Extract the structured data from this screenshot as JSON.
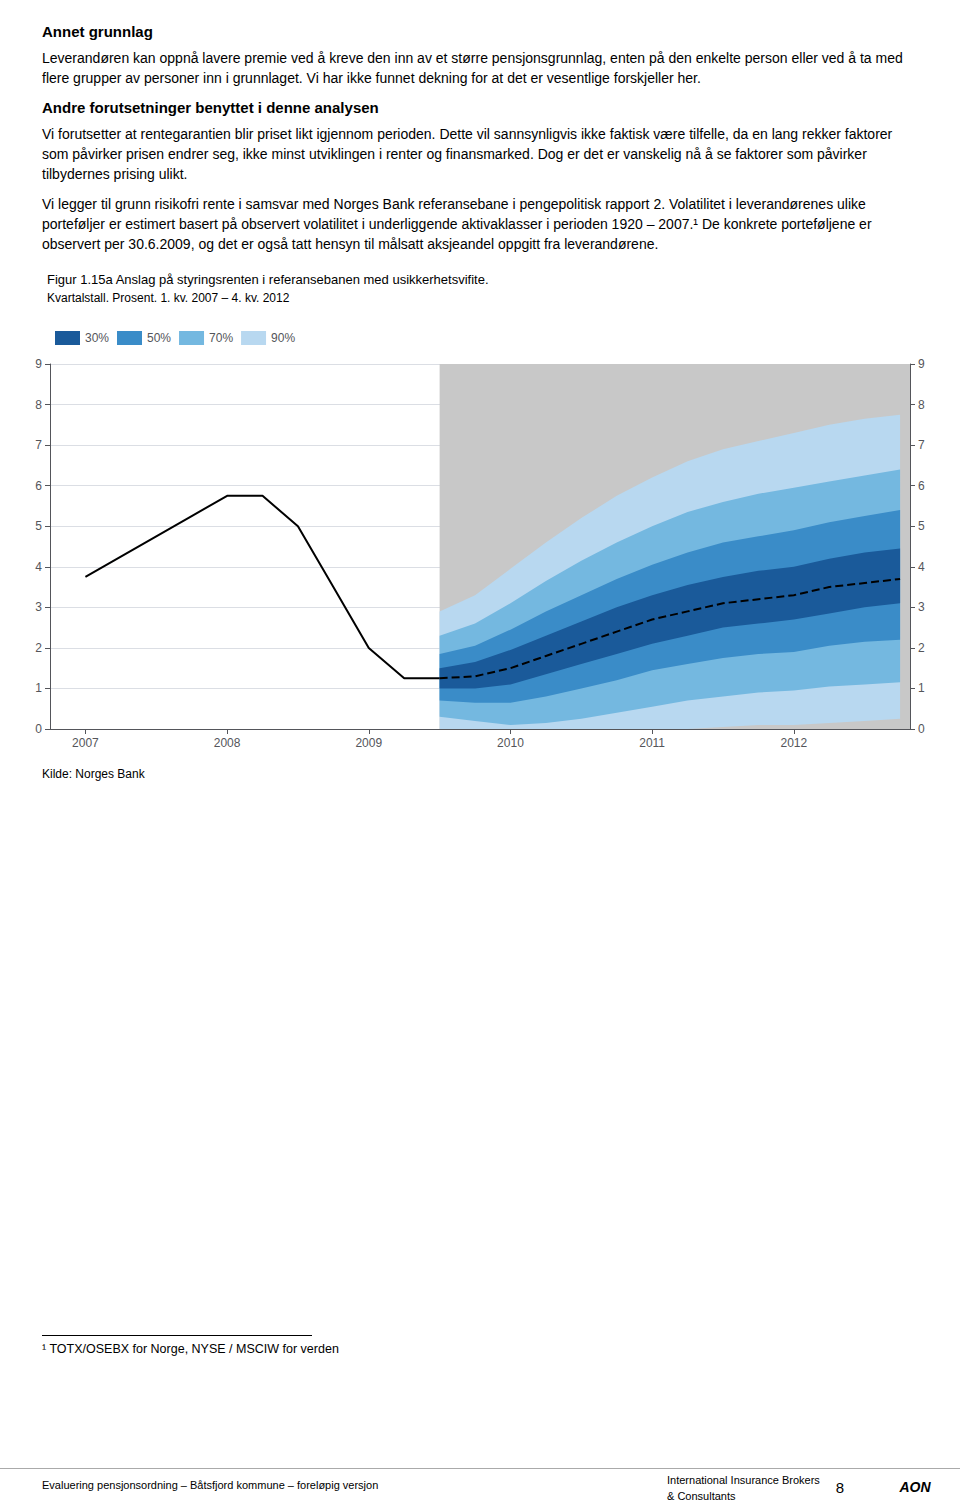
{
  "chart_data": {
    "type": "line",
    "title": "Figur 1.15a Anslag på styringsrenten i referansebanen med usikkerhetsvifite.",
    "subtitle": "Kvartalstall. Prosent. 1. kv. 2007 – 4. kv. 2012",
    "annotations": [
      "Annet grunnlag",
      "Leverandøren kan oppnå lavere premie ved å kreve den inn av et større pensjonsgrunnlag, enten på den enkelte person eller ved å ta med flere grupper av personer inn i grunnlaget. Vi har ikke funnet dekning for at det er vesentlige forskjeller her.",
      "Andre forutsetninger benyttet i denne analysen",
      "Vi forutsetter at rentegarantien blir priset likt igjennom perioden. Dette vil sannsynligvis ikke faktisk være tilfelle, da en lang rekker faktorer som påvirker prisen endrer seg, ikke minst utviklingen i renter og finansmarked. Dog er det er vanskelig nå å se faktorer som påvirker tilbydernes prising ulikt.",
      "Vi legger til grunn risikofri rente i samsvar med Norges Bank referansebane i pengepolitisk rapport 2. Volatilitet i leverandørenes ulike porteføljer er estimert basert på observert volatilitet i underliggende aktivaklasser i perioden 1920 – 2007.¹ De konkrete porteføljene er observert per 30.6.2009, og det er også tatt hensyn til målsatt aksjeandel oppgitt fra leverandørene.",
      "Kilde: Norges Bank",
      "¹ TOTX/OSEBX for Norge, NYSE / MSCIW for verden",
      "Evaluering pensjonsordning – Båtsfjord kommune – foreløpig versjon",
      "International Insurance Brokers",
      "& Consultants",
      "8",
      "AON"
    ],
    "xlim": [
      2006.75,
      2012.82
    ],
    "xticks": [
      2007,
      2008,
      2009,
      2010,
      2011,
      2012
    ],
    "ylim": [
      0,
      9
    ],
    "yticks": [
      0,
      1,
      2,
      3,
      4,
      5,
      6,
      7,
      8,
      9
    ],
    "y2lim": [
      0,
      9
    ],
    "y2ticks": [
      0,
      1,
      2,
      3,
      4,
      5,
      6,
      7,
      8,
      9
    ],
    "grid": true,
    "legend": "upper left",
    "spans": [
      {
        "from": 2009.5,
        "to": 2012.82,
        "color": "#c8c8c8"
      }
    ],
    "series": [
      {
        "name": "30%",
        "type": "band",
        "color": "#1a5a9a",
        "x": [
          2009.5,
          2009.75,
          2010.0,
          2010.25,
          2010.5,
          2010.75,
          2011.0,
          2011.25,
          2011.5,
          2011.75,
          2012.0,
          2012.25,
          2012.5,
          2012.75
        ],
        "lower": [
          1.0,
          1.0,
          1.1,
          1.35,
          1.6,
          1.85,
          2.1,
          2.3,
          2.5,
          2.6,
          2.7,
          2.85,
          3.0,
          3.1
        ],
        "upper": [
          1.5,
          1.65,
          1.95,
          2.3,
          2.65,
          3.0,
          3.3,
          3.55,
          3.75,
          3.9,
          4.0,
          4.2,
          4.35,
          4.45
        ]
      },
      {
        "name": "50%",
        "type": "band",
        "color": "#3a8cc8",
        "x": [
          2009.5,
          2009.75,
          2010.0,
          2010.25,
          2010.5,
          2010.75,
          2011.0,
          2011.25,
          2011.5,
          2011.75,
          2012.0,
          2012.25,
          2012.5,
          2012.75
        ],
        "lower": [
          0.7,
          0.65,
          0.65,
          0.8,
          1.0,
          1.2,
          1.45,
          1.6,
          1.75,
          1.85,
          1.9,
          2.05,
          2.15,
          2.2
        ],
        "upper": [
          1.85,
          2.05,
          2.45,
          2.9,
          3.3,
          3.7,
          4.05,
          4.35,
          4.6,
          4.75,
          4.9,
          5.1,
          5.25,
          5.4
        ]
      },
      {
        "name": "70%",
        "type": "band",
        "color": "#74b8e0",
        "x": [
          2009.5,
          2009.75,
          2010.0,
          2010.25,
          2010.5,
          2010.75,
          2011.0,
          2011.25,
          2011.5,
          2011.75,
          2012.0,
          2012.25,
          2012.5,
          2012.75
        ],
        "lower": [
          0.3,
          0.2,
          0.1,
          0.15,
          0.25,
          0.4,
          0.55,
          0.7,
          0.8,
          0.9,
          0.95,
          1.05,
          1.1,
          1.15
        ],
        "upper": [
          2.3,
          2.6,
          3.1,
          3.65,
          4.15,
          4.6,
          5.0,
          5.35,
          5.6,
          5.8,
          5.95,
          6.1,
          6.25,
          6.4
        ]
      },
      {
        "name": "90%",
        "type": "band",
        "color": "#b8d8f0",
        "x": [
          2009.5,
          2009.75,
          2010.0,
          2010.25,
          2010.5,
          2010.75,
          2011.0,
          2011.25,
          2011.5,
          2011.75,
          2012.0,
          2012.25,
          2012.5,
          2012.75
        ],
        "lower": [
          0.0,
          0.0,
          0.0,
          0.0,
          0.0,
          0.0,
          0.0,
          0.0,
          0.05,
          0.1,
          0.1,
          0.15,
          0.2,
          0.25
        ],
        "upper": [
          2.9,
          3.3,
          3.95,
          4.6,
          5.2,
          5.75,
          6.2,
          6.6,
          6.9,
          7.1,
          7.3,
          7.5,
          7.65,
          7.75
        ]
      },
      {
        "type": "line",
        "color": "#000000",
        "line_style": "dashed",
        "x": [
          2009.5,
          2009.75,
          2010.0,
          2010.25,
          2010.5,
          2010.75,
          2011.0,
          2011.25,
          2011.5,
          2011.75,
          2012.0,
          2012.25,
          2012.5,
          2012.75
        ],
        "values": [
          1.25,
          1.3,
          1.5,
          1.8,
          2.1,
          2.4,
          2.7,
          2.9,
          3.1,
          3.2,
          3.3,
          3.5,
          3.6,
          3.7
        ]
      },
      {
        "type": "line",
        "color": "#000000",
        "line_style": "solid",
        "x": [
          2007.0,
          2007.25,
          2007.5,
          2007.75,
          2008.0,
          2008.25,
          2008.5,
          2008.75,
          2009.0,
          2009.25,
          2009.5
        ],
        "values": [
          3.75,
          4.25,
          4.75,
          5.25,
          5.75,
          5.75,
          5.0,
          3.5,
          2.0,
          1.25,
          1.25
        ]
      }
    ]
  }
}
